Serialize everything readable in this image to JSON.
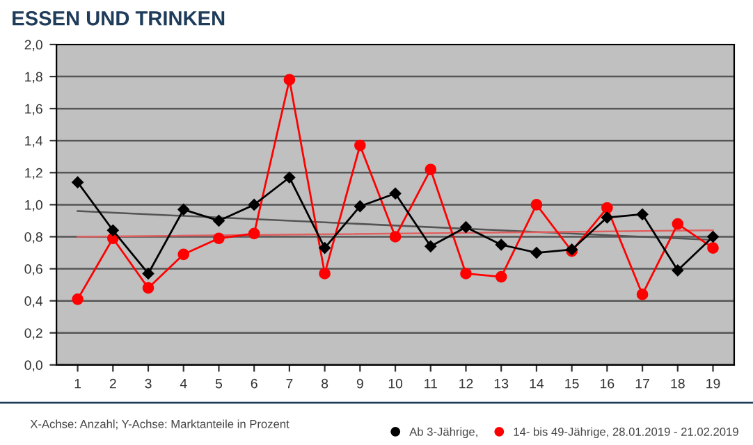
{
  "chart_data": {
    "type": "line",
    "title": "ESSEN UND TRINKEN",
    "categories": [
      "1",
      "2",
      "3",
      "4",
      "5",
      "6",
      "7",
      "8",
      "9",
      "10",
      "11",
      "12",
      "13",
      "14",
      "15",
      "16",
      "17",
      "18",
      "19"
    ],
    "series": [
      {
        "name": "Ab 3-Jährige,",
        "color": "#000000",
        "marker": "diamond",
        "values": [
          1.14,
          0.84,
          0.57,
          0.97,
          0.9,
          1.0,
          1.17,
          0.73,
          0.99,
          1.07,
          0.74,
          0.86,
          0.75,
          0.7,
          0.72,
          0.92,
          0.94,
          0.59,
          0.8
        ]
      },
      {
        "name": "14- bis 49-Jährige, 28.01.2019 - 21.02.2019",
        "color": "#ff0000",
        "marker": "circle",
        "values": [
          0.41,
          0.79,
          0.48,
          0.69,
          0.79,
          0.82,
          1.78,
          0.57,
          1.37,
          0.8,
          1.22,
          0.57,
          0.55,
          1.0,
          0.71,
          0.98,
          0.44,
          0.88,
          0.73
        ]
      },
      {
        "type": "line",
        "color": "#555555",
        "marker": "none",
        "x": [
          "1",
          "19"
        ],
        "values": [
          0.96,
          0.78
        ]
      },
      {
        "type": "line",
        "color": "#e06060",
        "marker": "none",
        "x": [
          "1",
          "19"
        ],
        "values": [
          0.8,
          0.84
        ]
      }
    ],
    "ylim": [
      0,
      2
    ],
    "yticks": [
      {
        "value": 0,
        "label": "0,0"
      },
      {
        "value": 0.2,
        "label": "0,2"
      },
      {
        "value": 0.4,
        "label": "0,4"
      },
      {
        "value": 0.6,
        "label": "0,6"
      },
      {
        "value": 0.8,
        "label": "0,8"
      },
      {
        "value": 1.0,
        "label": "1,0"
      },
      {
        "value": 1.2,
        "label": "1,2"
      },
      {
        "value": 1.4,
        "label": "1,4"
      },
      {
        "value": 1.6,
        "label": "1,6"
      },
      {
        "value": 1.8,
        "label": "1,8"
      },
      {
        "value": 2.0,
        "label": "2,0"
      }
    ],
    "grid": "y",
    "legend": "bottom",
    "annotations": [
      "X-Achse: Anzahl; Y-Achse: Marktanteile in Prozent"
    ]
  }
}
